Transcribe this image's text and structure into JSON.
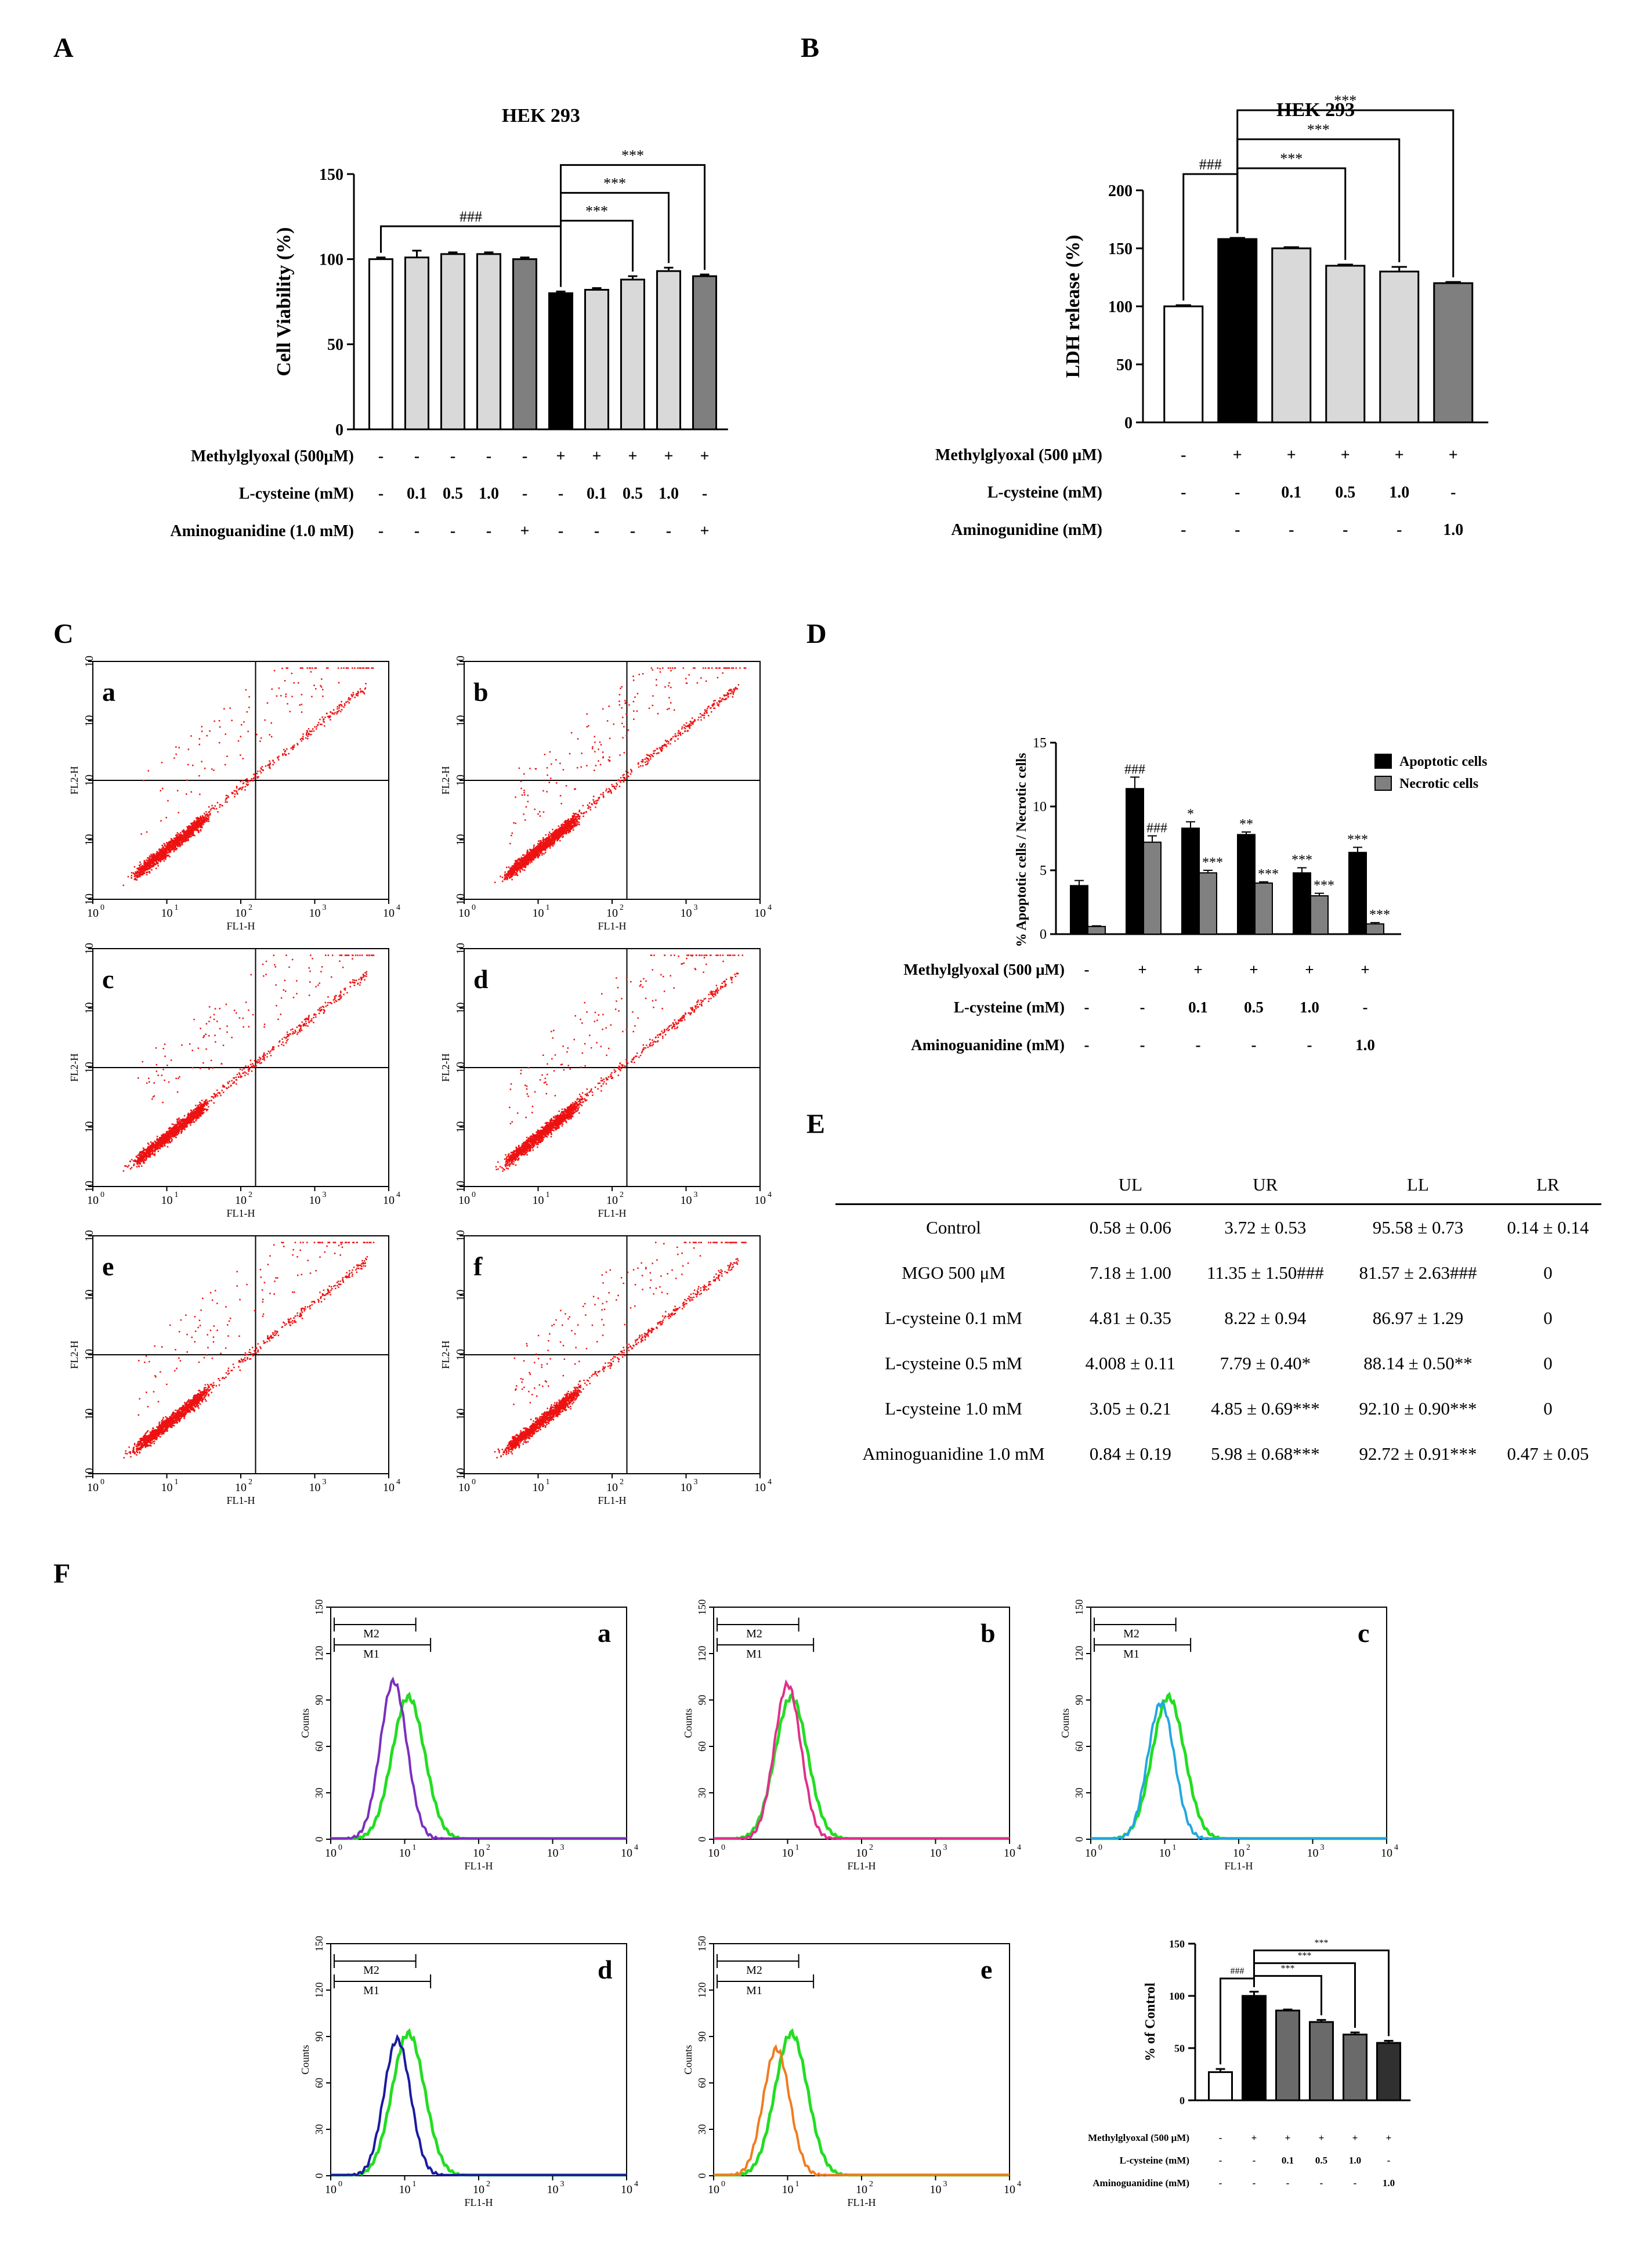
{
  "chart_data": [
    {
      "id": "A",
      "type": "bar",
      "panel_letter": "A",
      "title": "HEK 293",
      "ylabel": "Cell Viability (%)",
      "ylim": [
        0,
        150
      ],
      "yticks": [
        "0",
        "50",
        "100",
        "150"
      ],
      "values": [
        100,
        101,
        103,
        103,
        100,
        80,
        82,
        88,
        93,
        90
      ],
      "errors": [
        1,
        4,
        1,
        1,
        1,
        1,
        1,
        2,
        2,
        1
      ],
      "colors": [
        "#ffffff",
        "#d9d9d9",
        "#d9d9d9",
        "#d9d9d9",
        "#7f7f7f",
        "#000000",
        "#d9d9d9",
        "#d9d9d9",
        "#d9d9d9",
        "#7f7f7f"
      ],
      "annotations": [
        {
          "label": "###",
          "from": 0,
          "to": 5
        },
        {
          "label": "***",
          "from": 5,
          "to": 7
        },
        {
          "label": "***",
          "from": 5,
          "to": 8
        },
        {
          "label": "***",
          "from": 5,
          "to": 9
        }
      ],
      "treatment_rows": [
        {
          "label": "Methylglyoxal (500μM)",
          "values": [
            "-",
            "-",
            "-",
            "-",
            "-",
            "+",
            "+",
            "+",
            "+",
            "+"
          ]
        },
        {
          "label": "L-cysteine (mM)",
          "values": [
            "-",
            "0.1",
            "0.5",
            "1.0",
            "-",
            "-",
            "0.1",
            "0.5",
            "1.0",
            "-"
          ]
        },
        {
          "label": "Aminoguanidine (1.0 mM)",
          "values": [
            "-",
            "-",
            "-",
            "-",
            "+",
            "-",
            "-",
            "-",
            "-",
            "+"
          ]
        }
      ]
    },
    {
      "id": "B",
      "type": "bar",
      "panel_letter": "B",
      "title": "HEK 293",
      "ylabel": "LDH release (%)",
      "ylim": [
        0,
        200
      ],
      "yticks": [
        "0",
        "50",
        "100",
        "150",
        "200"
      ],
      "values": [
        100,
        158,
        150,
        135,
        130,
        120
      ],
      "errors": [
        1,
        1,
        1,
        1,
        4,
        1
      ],
      "colors": [
        "#ffffff",
        "#000000",
        "#d9d9d9",
        "#d9d9d9",
        "#d9d9d9",
        "#7f7f7f"
      ],
      "annotations": [
        {
          "label": "###",
          "from": 0,
          "to": 1
        },
        {
          "label": "***",
          "from": 1,
          "to": 3
        },
        {
          "label": "***",
          "from": 1,
          "to": 4
        },
        {
          "label": "***",
          "from": 1,
          "to": 5
        }
      ],
      "treatment_rows": [
        {
          "label": "Methylglyoxal (500 μM)",
          "values": [
            "-",
            "+",
            "+",
            "+",
            "+",
            "+"
          ]
        },
        {
          "label": "L-cysteine (mM)",
          "values": [
            "-",
            "-",
            "0.1",
            "0.5",
            "1.0",
            "-"
          ]
        },
        {
          "label": "Aminogunidine (mM)",
          "values": [
            "-",
            "-",
            "-",
            "-",
            "-",
            "1.0"
          ]
        }
      ]
    },
    {
      "id": "C",
      "type": "scatter",
      "panel_letter": "C",
      "xlabel": "FL1-H",
      "ylabel": "FL2-H",
      "tick_labels": [
        "10",
        "10",
        "10",
        "10",
        "10"
      ],
      "tick_exponents": [
        "0",
        "1",
        "2",
        "3",
        "4"
      ],
      "gate_log": [
        2.2,
        2.0
      ],
      "subpanels": [
        {
          "letter": "a",
          "ul": 0.58,
          "ur": 3.72
        },
        {
          "letter": "b",
          "ul": 7.18,
          "ur": 11.35
        },
        {
          "letter": "c",
          "ul": 4.81,
          "ur": 8.22
        },
        {
          "letter": "d",
          "ul": 4.008,
          "ur": 7.79
        },
        {
          "letter": "e",
          "ul": 3.05,
          "ur": 4.85
        },
        {
          "letter": "f",
          "ul": 0.84,
          "ur": 5.98
        }
      ]
    },
    {
      "id": "D",
      "type": "bar",
      "panel_letter": "D",
      "ylabel": "% Apoptotic cells / Necrotic cells",
      "ylim": [
        0,
        15
      ],
      "yticks": [
        "0",
        "5",
        "10",
        "15"
      ],
      "series": [
        {
          "name": "Apoptotic cells",
          "color": "#000000",
          "values": [
            3.8,
            11.4,
            8.3,
            7.8,
            4.8,
            6.4
          ],
          "errors": [
            0.4,
            0.9,
            0.5,
            0.2,
            0.4,
            0.4
          ],
          "labels": [
            "",
            "###",
            "*",
            "**",
            "***",
            "***"
          ]
        },
        {
          "name": "Necrotic cells",
          "color": "#808080",
          "values": [
            0.6,
            7.2,
            4.8,
            4.0,
            3.0,
            0.8
          ],
          "errors": [
            0.05,
            0.5,
            0.2,
            0.1,
            0.2,
            0.1
          ],
          "labels": [
            "",
            "###",
            "***",
            "***",
            "***",
            "***"
          ]
        }
      ],
      "treatment_rows": [
        {
          "label": "Methylglyoxal (500 μM)",
          "values": [
            "-",
            "+",
            "+",
            "+",
            "+",
            "+"
          ]
        },
        {
          "label": "L-cysteine (mM)",
          "values": [
            "-",
            "-",
            "0.1",
            "0.5",
            "1.0",
            "-"
          ]
        },
        {
          "label": "Aminoguanidine (mM)",
          "values": [
            "-",
            "-",
            "-",
            "-",
            "-",
            "1.0"
          ]
        }
      ]
    },
    {
      "id": "E",
      "type": "table",
      "panel_letter": "E",
      "columns": [
        "",
        "UL",
        "UR",
        "LL",
        "LR"
      ],
      "rows": [
        [
          "Control",
          "0.58 ± 0.06",
          "3.72 ± 0.53",
          "95.58 ± 0.73",
          "0.14 ± 0.14"
        ],
        [
          "MGO 500 μM",
          "7.18 ± 1.00",
          "11.35 ± 1.50###",
          "81.57 ± 2.63###",
          "0"
        ],
        [
          "L-cysteine 0.1 mM",
          "4.81 ± 0.35",
          "8.22 ± 0.94",
          "86.97 ± 1.29",
          "0"
        ],
        [
          "L-cysteine 0.5 mM",
          "4.008 ± 0.11",
          "7.79 ± 0.40*",
          "88.14 ± 0.50**",
          "0"
        ],
        [
          "L-cysteine 1.0 mM",
          "3.05 ± 0.21",
          "4.85 ± 0.69***",
          "92.10 ± 0.90***",
          "0"
        ],
        [
          "Aminoguanidine 1.0 mM",
          "0.84 ± 0.19",
          "5.98 ± 0.68***",
          "92.72 ± 0.91***",
          "0.47 ± 0.05"
        ]
      ]
    },
    {
      "id": "F",
      "type": "line",
      "panel_letter": "F",
      "xlabel": "FL1-H",
      "ylabel": "Counts",
      "yticks": [
        "0",
        "30",
        "60",
        "90",
        "120",
        "150"
      ],
      "tick_labels": [
        "10",
        "10",
        "10",
        "10",
        "10"
      ],
      "tick_exponents": [
        "0",
        "1",
        "2",
        "3",
        "4"
      ],
      "markers": [
        "M2",
        "M1"
      ],
      "reference_color": "#22dd22",
      "subpanels": [
        {
          "letter": "a",
          "color": "#7b2fbe",
          "peak_log": 0.85,
          "peak": 102
        },
        {
          "letter": "b",
          "color": "#e0308a",
          "peak_log": 1.0,
          "peak": 100
        },
        {
          "letter": "c",
          "color": "#22a7e0",
          "peak_log": 0.95,
          "peak": 88
        },
        {
          "letter": "d",
          "color": "#1a1aa0",
          "peak_log": 0.9,
          "peak": 88
        },
        {
          "letter": "e",
          "color": "#f07c20",
          "peak_log": 0.85,
          "peak": 82
        }
      ]
    },
    {
      "id": "F-bar",
      "type": "bar",
      "ylabel": "% of Control",
      "ylim": [
        0,
        150
      ],
      "yticks": [
        "0",
        "50",
        "100",
        "150"
      ],
      "values": [
        27,
        100,
        86,
        75,
        63,
        55
      ],
      "errors": [
        3,
        4,
        1,
        2,
        2,
        2
      ],
      "colors": [
        "#ffffff",
        "#000000",
        "#6a6a6a",
        "#6a6a6a",
        "#6a6a6a",
        "#303030"
      ],
      "annotations": [
        {
          "label": "###",
          "from": 0,
          "to": 1
        },
        {
          "label": "***",
          "from": 1,
          "to": 3
        },
        {
          "label": "***",
          "from": 1,
          "to": 4
        },
        {
          "label": "***",
          "from": 1,
          "to": 5
        }
      ],
      "treatment_rows": [
        {
          "label": "Methylglyoxal (500 μM)",
          "values": [
            "-",
            "+",
            "+",
            "+",
            "+",
            "+"
          ]
        },
        {
          "label": "L-cysteine (mM)",
          "values": [
            "-",
            "-",
            "0.1",
            "0.5",
            "1.0",
            "-"
          ]
        },
        {
          "label": "Aminoguanidine (mM)",
          "values": [
            "-",
            "-",
            "-",
            "-",
            "-",
            "1.0"
          ]
        }
      ]
    }
  ]
}
